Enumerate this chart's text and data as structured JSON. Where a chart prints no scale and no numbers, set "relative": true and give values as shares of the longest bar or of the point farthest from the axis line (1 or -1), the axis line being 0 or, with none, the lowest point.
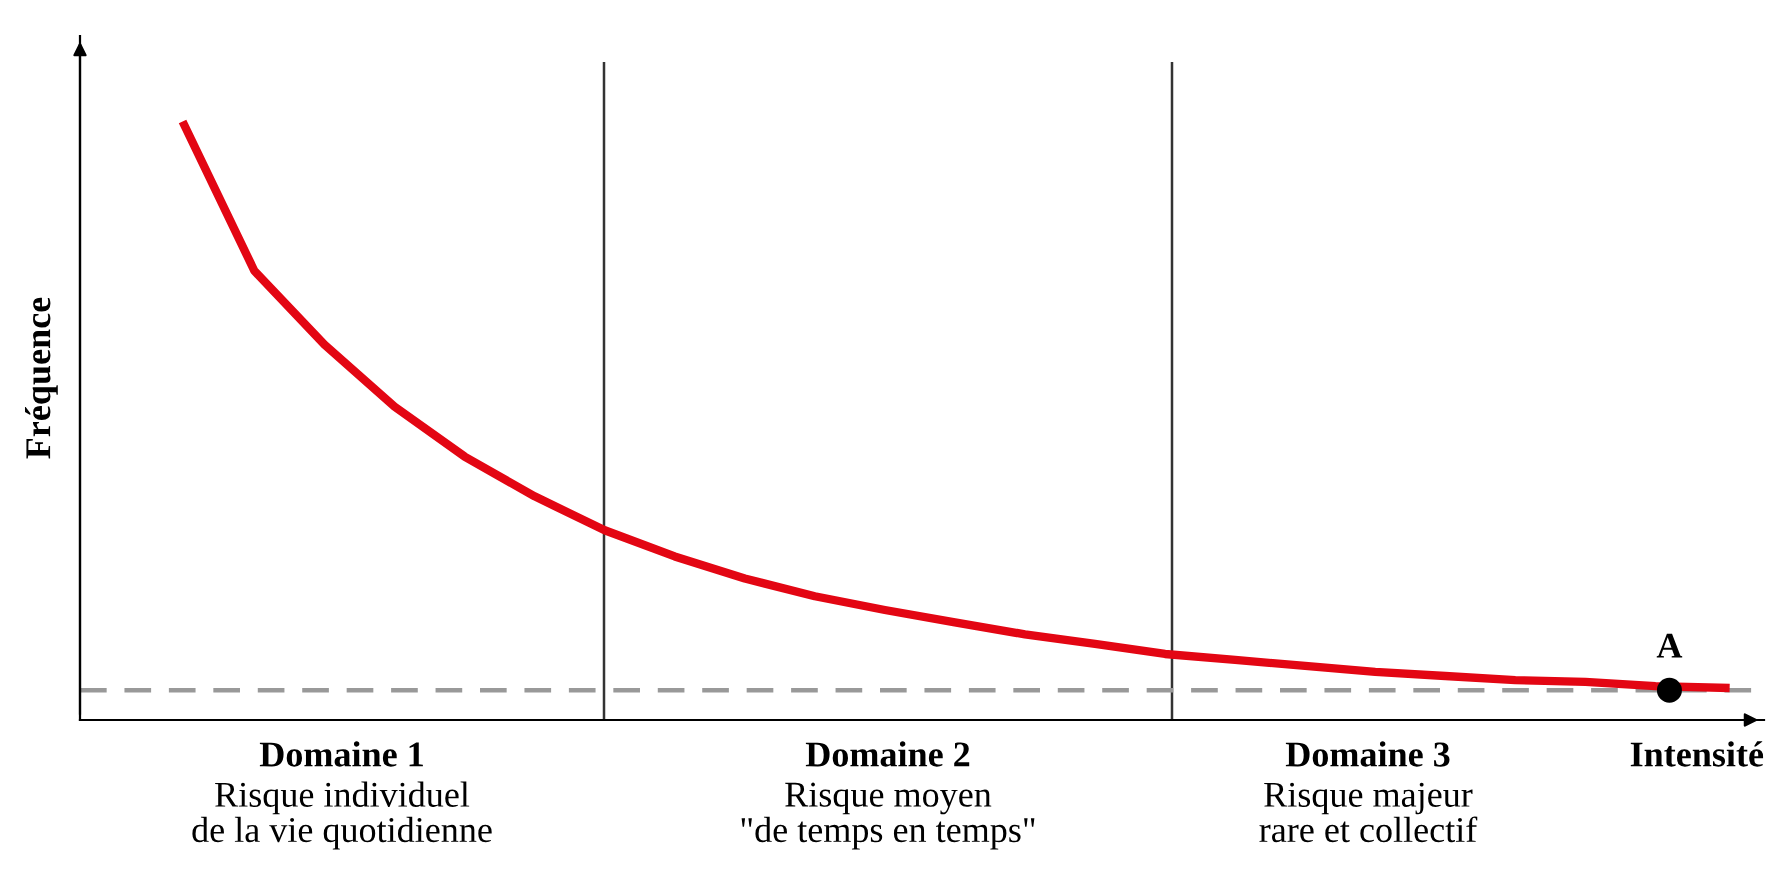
{
  "chart_data": {
    "type": "line",
    "relative": true,
    "xlabel": "Intensité",
    "ylabel": "Fréquence",
    "categories": [
      null,
      null,
      null,
      null,
      null,
      null,
      null,
      null,
      null,
      null,
      null,
      null,
      null,
      null,
      null,
      null,
      null,
      null,
      null,
      null,
      null,
      null,
      null
    ],
    "series": [
      {
        "color": "#e30613",
        "values": [
          1,
          0.755,
          0.631,
          0.527,
          0.443,
          0.376,
          0.319,
          0.275,
          0.238,
          0.208,
          0.185,
          0.164,
          0.144,
          0.128,
          0.111,
          0.101,
          0.091,
          0.081,
          0.074,
          0.067,
          0.064,
          0.057,
          0.054
        ]
      }
    ],
    "ref_lines": [
      {
        "axis": "y",
        "value": 0.05,
        "color": "#999999",
        "line_style": "dashed",
        "label": "A"
      }
    ],
    "annotations": [
      "Domaine 1",
      "Risque individuel\nde la vie quotidienne",
      "Domaine 2",
      "Risque moyen\n\"de temps en temps\"",
      "Domaine 3",
      "Risque majeur\nrare et collectif"
    ],
    "marker": "none",
    "line_style": "solid"
  }
}
